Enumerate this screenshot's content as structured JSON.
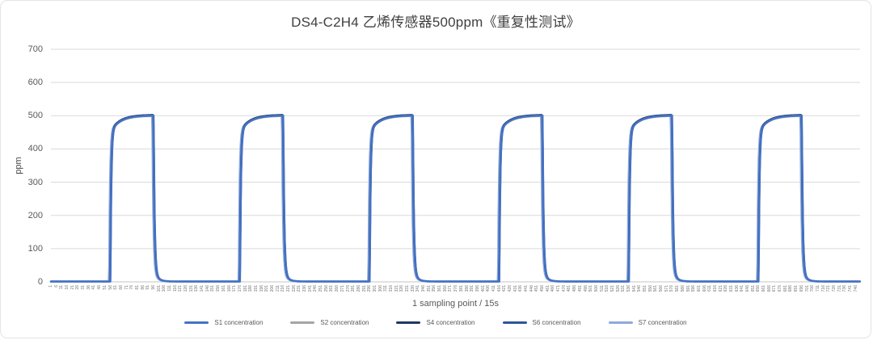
{
  "chart": {
    "title": "DS4-C2H4 乙烯传感器500ppm《重复性测试》",
    "y_axis": {
      "label": "ppm",
      "ticks": [
        0,
        100,
        200,
        300,
        400,
        500,
        600,
        700
      ],
      "min": 0,
      "max": 700
    },
    "x_axis": {
      "title": "1 sampling point / 15s",
      "tick_first": 1,
      "tick_step": 5,
      "tick_count": 150,
      "tick_last": 746,
      "point_count": 750
    },
    "legend": [
      {
        "label": "S1  concentration",
        "color": "#4472C4"
      },
      {
        "label": "S2  concentration",
        "color": "#A5A5A5"
      },
      {
        "label": "S4  concentration",
        "color": "#1F3864"
      },
      {
        "label": "S6  concentration",
        "color": "#2F5597"
      },
      {
        "label": "S7  concentration",
        "color": "#8FAADC"
      }
    ],
    "colors": {
      "gridline": "#d9d9d9",
      "axis_line": "#c6c6c6",
      "title_text": "#3f3f3f",
      "axis_text": "#595959"
    }
  },
  "chart_data": {
    "type": "line",
    "title": "DS4-C2H4 乙烯传感器500ppm《重复性测试》",
    "xlabel": "1 sampling point / 15s",
    "ylabel": "ppm",
    "ylim": [
      0,
      700
    ],
    "x_range": [
      1,
      750
    ],
    "x_tick_labels": {
      "first": 1,
      "step": 5,
      "last": 746
    },
    "grid": "horizontal",
    "legend_position": "bottom",
    "baseline_ppm": 1,
    "plateau_ppm": 500,
    "pulses": [
      {
        "rise_start": 56,
        "fall_start": 96
      },
      {
        "rise_start": 176,
        "fall_start": 216
      },
      {
        "rise_start": 296,
        "fall_start": 336
      },
      {
        "rise_start": 416,
        "fall_start": 456
      },
      {
        "rise_start": 536,
        "fall_start": 576
      },
      {
        "rise_start": 656,
        "fall_start": 696
      }
    ],
    "waveform": {
      "rise_fast_tau": 0.8,
      "rise_fast_frac": 0.9,
      "rise_slow_tau": 9,
      "fall_fast_tau": 0.9,
      "fall_fast_frac": 0.93,
      "fall_slow_tau": 3.5
    },
    "series": [
      {
        "name": "S2 concentration",
        "color": "#A5A5A5",
        "plateau": 498,
        "x_offset": 0,
        "width": 1.8
      },
      {
        "name": "S7 concentration",
        "color": "#8FAADC",
        "plateau": 499.5,
        "x_offset": -1.1,
        "width": 2.6
      },
      {
        "name": "S4 concentration",
        "color": "#1F3864",
        "plateau": 502.5,
        "x_offset": -0.35,
        "width": 1.9
      },
      {
        "name": "S6 concentration",
        "color": "#2F5597",
        "plateau": 500.5,
        "x_offset": 0.35,
        "width": 1.9
      },
      {
        "name": "S1 concentration",
        "color": "#4472C4",
        "plateau": 500,
        "x_offset": 0,
        "width": 2.6
      }
    ]
  }
}
